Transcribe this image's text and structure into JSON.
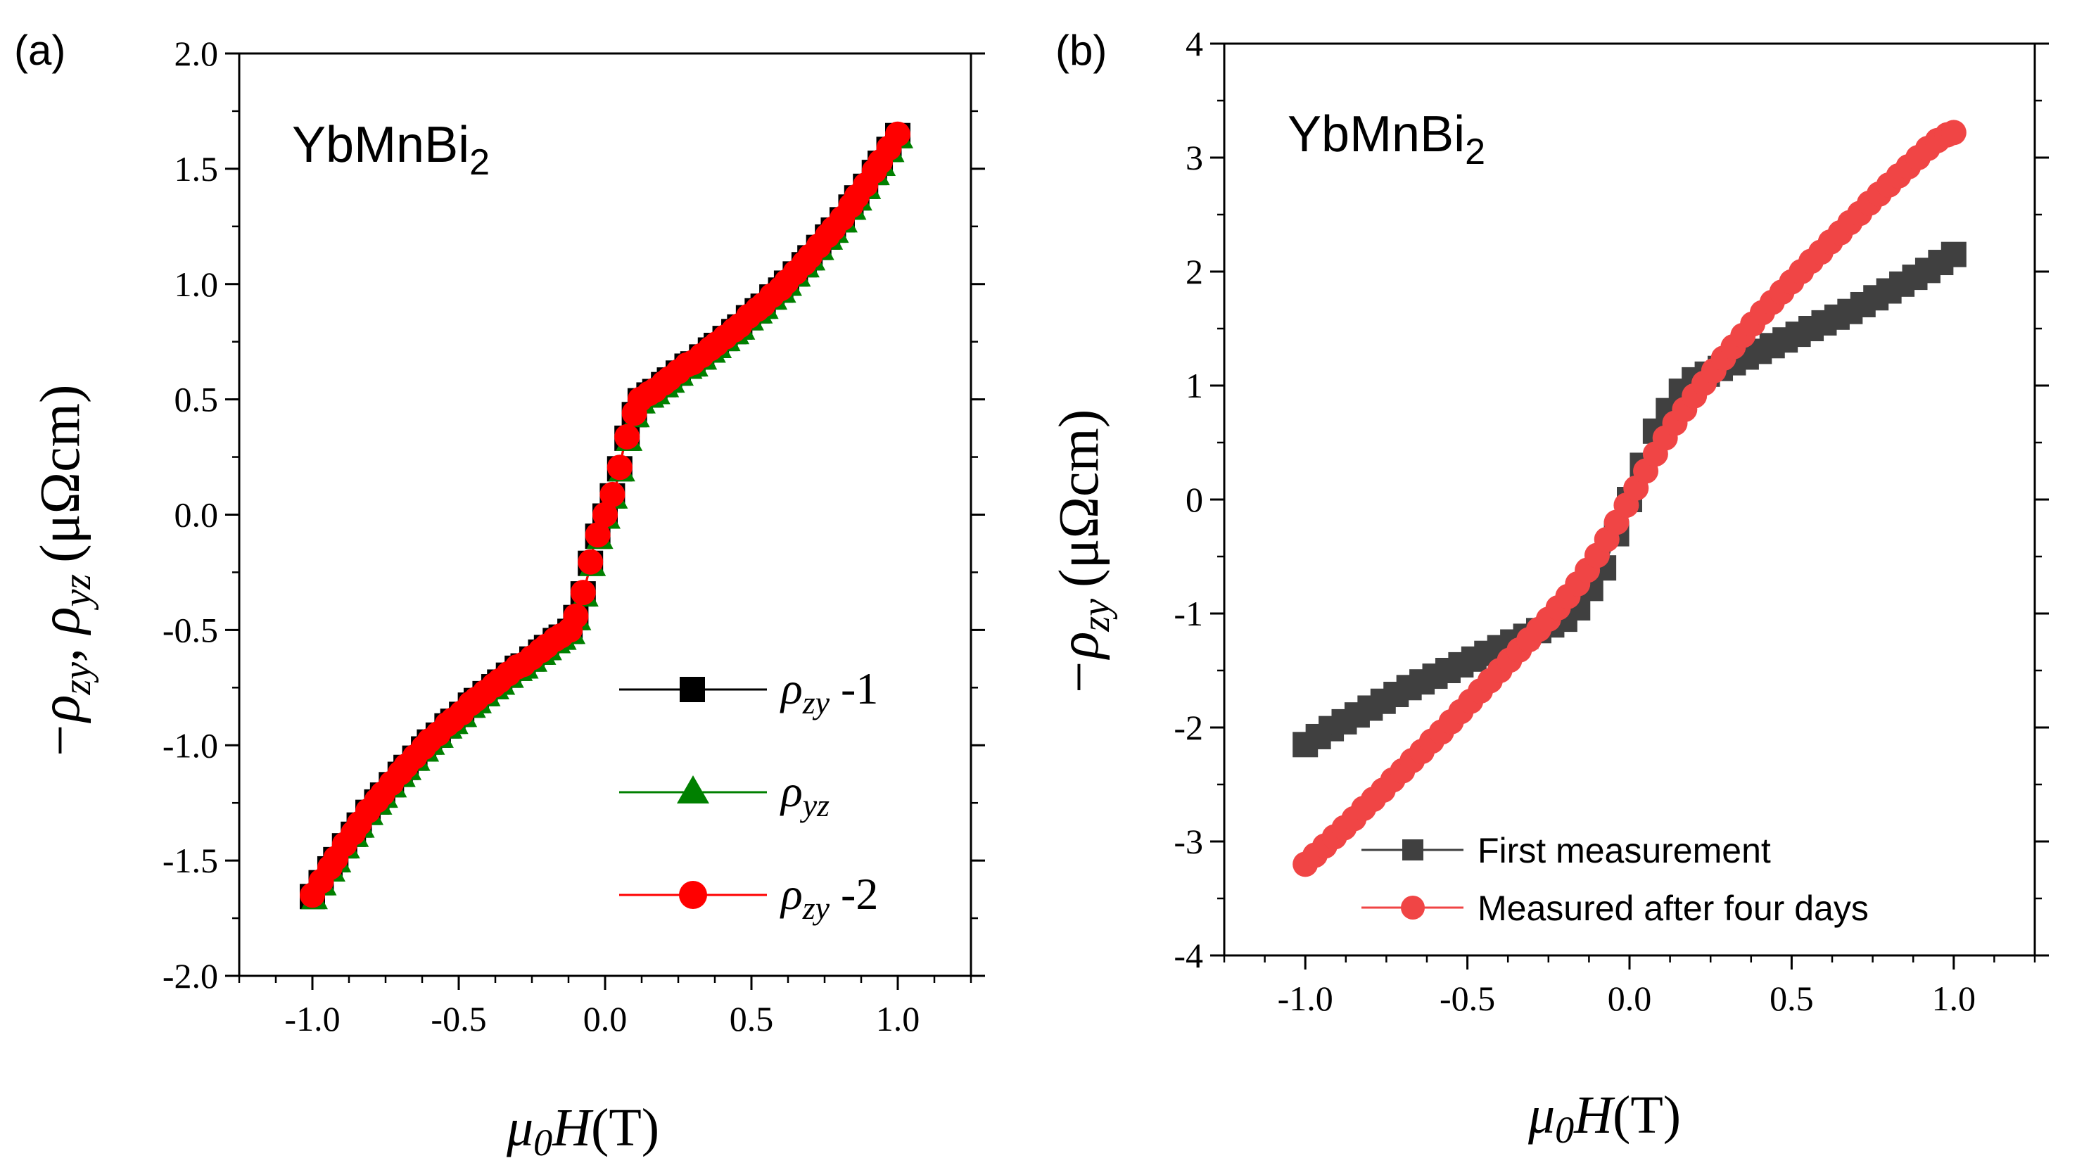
{
  "chart_data": [
    {
      "type": "scatter",
      "panel_label": "(a)",
      "compound": {
        "base": "YbMnBi",
        "subscript": "2"
      },
      "xlabel": {
        "prefix": "μ",
        "sub": "0",
        "var": "H",
        "unit": "(T)"
      },
      "ylabel": {
        "prefix": "−ρ",
        "sub1": "zy",
        "sep": ",  ρ",
        "sub2": "yz",
        "unit": "(μΩcm)"
      },
      "xlim": [
        -1.25,
        1.25
      ],
      "ylim": [
        -2.0,
        2.0
      ],
      "xticks": [
        -1.0,
        -0.5,
        0.0,
        0.5,
        1.0
      ],
      "xtick_labels": [
        "-1.0",
        "-0.5",
        "0.0",
        "0.5",
        "1.0"
      ],
      "yticks": [
        -2.0,
        -1.5,
        -1.0,
        -0.5,
        0.0,
        0.5,
        1.0,
        1.5,
        2.0
      ],
      "ytick_labels": [
        "-2.0",
        "-1.5",
        "-1.0",
        "-0.5",
        "0.0",
        "0.5",
        "1.0",
        "1.5",
        "2.0"
      ],
      "series": [
        {
          "name": "ρzy -1",
          "legend": {
            "sym": "ρ",
            "sub": "zy",
            "suffix": " -1"
          },
          "marker": "square",
          "color": "#000000"
        },
        {
          "name": "ρyz",
          "legend": {
            "sym": "ρ",
            "sub": "yz",
            "suffix": ""
          },
          "marker": "triangle",
          "color": "#008000"
        },
        {
          "name": "ρzy -2",
          "legend": {
            "sym": "ρ",
            "sub": "zy",
            "suffix": " -2"
          },
          "marker": "circle",
          "color": "#ff0000"
        }
      ],
      "x": [
        -1.0,
        -0.98,
        -0.96,
        -0.94,
        -0.92,
        -0.9,
        -0.88,
        -0.86,
        -0.84,
        -0.82,
        -0.8,
        -0.78,
        -0.76,
        -0.74,
        -0.72,
        -0.7,
        -0.68,
        -0.66,
        -0.64,
        -0.62,
        -0.6,
        -0.58,
        -0.56,
        -0.54,
        -0.52,
        -0.5,
        -0.48,
        -0.46,
        -0.44,
        -0.42,
        -0.4,
        -0.38,
        -0.36,
        -0.34,
        -0.32,
        -0.3,
        -0.28,
        -0.26,
        -0.24,
        -0.22,
        -0.2,
        -0.18,
        -0.16,
        -0.14,
        -0.12,
        -0.1,
        -0.08,
        -0.06,
        -0.04,
        -0.02,
        0.0,
        0.02,
        0.04,
        0.06,
        0.08,
        0.1,
        0.12,
        0.14,
        0.16,
        0.18,
        0.2,
        0.22,
        0.24,
        0.26,
        0.28,
        0.3,
        0.32,
        0.34,
        0.36,
        0.38,
        0.4,
        0.42,
        0.44,
        0.46,
        0.48,
        0.5,
        0.52,
        0.54,
        0.56,
        0.58,
        0.6,
        0.62,
        0.64,
        0.66,
        0.68,
        0.7,
        0.72,
        0.74,
        0.76,
        0.78,
        0.8,
        0.82,
        0.84,
        0.86,
        0.88,
        0.9,
        0.92,
        0.94,
        0.96,
        0.98,
        1.0
      ],
      "y": [
        -1.65,
        -1.61,
        -1.57,
        -1.53,
        -1.49,
        -1.45,
        -1.41,
        -1.38,
        -1.34,
        -1.3,
        -1.27,
        -1.24,
        -1.21,
        -1.18,
        -1.15,
        -1.12,
        -1.09,
        -1.06,
        -1.04,
        -1.01,
        -0.98,
        -0.96,
        -0.94,
        -0.91,
        -0.89,
        -0.87,
        -0.85,
        -0.82,
        -0.8,
        -0.78,
        -0.76,
        -0.74,
        -0.72,
        -0.7,
        -0.68,
        -0.66,
        -0.65,
        -0.63,
        -0.61,
        -0.59,
        -0.57,
        -0.55,
        -0.53,
        -0.52,
        -0.5,
        -0.44,
        -0.36,
        -0.27,
        -0.14,
        -0.07,
        0.0,
        0.07,
        0.14,
        0.27,
        0.36,
        0.44,
        0.5,
        0.52,
        0.53,
        0.55,
        0.57,
        0.59,
        0.61,
        0.63,
        0.65,
        0.66,
        0.68,
        0.7,
        0.72,
        0.74,
        0.76,
        0.78,
        0.8,
        0.82,
        0.85,
        0.87,
        0.89,
        0.91,
        0.94,
        0.96,
        0.98,
        1.01,
        1.04,
        1.06,
        1.09,
        1.12,
        1.15,
        1.18,
        1.21,
        1.24,
        1.27,
        1.3,
        1.34,
        1.38,
        1.41,
        1.45,
        1.49,
        1.53,
        1.57,
        1.61,
        1.65
      ],
      "marker_x": [
        -1.0,
        -0.97,
        -0.94,
        -0.92,
        -0.89,
        -0.86,
        -0.84,
        -0.81,
        -0.78,
        -0.76,
        -0.73,
        -0.7,
        -0.68,
        -0.65,
        -0.62,
        -0.6,
        -0.57,
        -0.54,
        -0.52,
        -0.49,
        -0.46,
        -0.44,
        -0.41,
        -0.38,
        -0.36,
        -0.33,
        -0.3,
        -0.28,
        -0.25,
        -0.22,
        -0.2,
        -0.17,
        -0.15,
        -0.12,
        -0.1,
        -0.075,
        -0.05,
        -0.025,
        0.0,
        0.025,
        0.05,
        0.075,
        0.1,
        0.12,
        0.15,
        0.17,
        0.2,
        0.22,
        0.25,
        0.28,
        0.3,
        0.33,
        0.36,
        0.38,
        0.41,
        0.44,
        0.46,
        0.49,
        0.52,
        0.54,
        0.57,
        0.6,
        0.62,
        0.65,
        0.68,
        0.7,
        0.73,
        0.76,
        0.78,
        0.81,
        0.84,
        0.86,
        0.89,
        0.92,
        0.94,
        0.97,
        1.0
      ]
    },
    {
      "type": "scatter",
      "panel_label": "(b)",
      "compound": {
        "base": "YbMnBi",
        "subscript": "2"
      },
      "xlabel": {
        "prefix": "μ",
        "sub": "0",
        "var": "H",
        "unit": "(T)"
      },
      "ylabel": {
        "prefix": "−ρ",
        "sub1": "zy",
        "unit": "(μΩcm)"
      },
      "xlim": [
        -1.25,
        1.25
      ],
      "ylim": [
        -4,
        4
      ],
      "xticks": [
        -1.0,
        -0.5,
        0.0,
        0.5,
        1.0
      ],
      "xtick_labels": [
        "-1.0",
        "-0.5",
        "0.0",
        "0.5",
        "1.0"
      ],
      "yticks": [
        -4,
        -3,
        -2,
        -1,
        0,
        1,
        2,
        3,
        4
      ],
      "ytick_labels": [
        "-4",
        "-3",
        "-2",
        "-1",
        "0",
        "1",
        "2",
        "3",
        "4"
      ],
      "series": [
        {
          "name": "First measurement",
          "marker": "square",
          "color": "#404040",
          "x": [
            -1.0,
            -0.96,
            -0.92,
            -0.88,
            -0.84,
            -0.8,
            -0.76,
            -0.72,
            -0.68,
            -0.64,
            -0.6,
            -0.56,
            -0.52,
            -0.48,
            -0.44,
            -0.4,
            -0.36,
            -0.32,
            -0.28,
            -0.24,
            -0.2,
            -0.16,
            -0.12,
            -0.08,
            -0.04,
            0.0,
            0.04,
            0.08,
            0.12,
            0.16,
            0.2,
            0.24,
            0.28,
            0.32,
            0.36,
            0.4,
            0.44,
            0.48,
            0.52,
            0.56,
            0.6,
            0.64,
            0.68,
            0.72,
            0.76,
            0.8,
            0.84,
            0.88,
            0.92,
            0.96,
            1.0
          ],
          "y": [
            -2.15,
            -2.08,
            -2.01,
            -1.95,
            -1.89,
            -1.83,
            -1.77,
            -1.71,
            -1.65,
            -1.6,
            -1.55,
            -1.5,
            -1.45,
            -1.4,
            -1.35,
            -1.3,
            -1.25,
            -1.2,
            -1.15,
            -1.1,
            -1.05,
            -0.95,
            -0.78,
            -0.6,
            -0.3,
            0.0,
            0.3,
            0.6,
            0.78,
            0.95,
            1.05,
            1.1,
            1.15,
            1.2,
            1.25,
            1.3,
            1.35,
            1.4,
            1.45,
            1.5,
            1.55,
            1.6,
            1.65,
            1.71,
            1.77,
            1.83,
            1.89,
            1.95,
            2.01,
            2.08,
            2.15
          ]
        },
        {
          "name": "Measured after four days",
          "marker": "circle",
          "color": "#f04545",
          "x": [
            -1.0,
            -0.97,
            -0.94,
            -0.91,
            -0.88,
            -0.85,
            -0.82,
            -0.79,
            -0.76,
            -0.73,
            -0.7,
            -0.67,
            -0.64,
            -0.61,
            -0.58,
            -0.55,
            -0.52,
            -0.49,
            -0.46,
            -0.43,
            -0.4,
            -0.37,
            -0.34,
            -0.31,
            -0.28,
            -0.25,
            -0.22,
            -0.19,
            -0.16,
            -0.13,
            -0.1,
            -0.07,
            -0.04,
            -0.01,
            0.02,
            0.05,
            0.08,
            0.11,
            0.14,
            0.17,
            0.2,
            0.23,
            0.26,
            0.29,
            0.32,
            0.35,
            0.38,
            0.41,
            0.44,
            0.47,
            0.5,
            0.53,
            0.56,
            0.59,
            0.62,
            0.65,
            0.68,
            0.71,
            0.74,
            0.77,
            0.8,
            0.83,
            0.86,
            0.89,
            0.92,
            0.95,
            0.98,
            1.0
          ],
          "y": [
            -3.2,
            -3.12,
            -3.04,
            -2.96,
            -2.88,
            -2.8,
            -2.71,
            -2.63,
            -2.55,
            -2.46,
            -2.38,
            -2.29,
            -2.21,
            -2.12,
            -2.04,
            -1.95,
            -1.86,
            -1.77,
            -1.68,
            -1.59,
            -1.5,
            -1.41,
            -1.32,
            -1.23,
            -1.14,
            -1.05,
            -0.95,
            -0.85,
            -0.74,
            -0.62,
            -0.49,
            -0.35,
            -0.2,
            -0.05,
            0.1,
            0.25,
            0.4,
            0.54,
            0.67,
            0.79,
            0.91,
            1.02,
            1.13,
            1.24,
            1.34,
            1.44,
            1.54,
            1.64,
            1.73,
            1.82,
            1.91,
            2.0,
            2.09,
            2.17,
            2.26,
            2.34,
            2.43,
            2.51,
            2.6,
            2.68,
            2.76,
            2.84,
            2.92,
            3.0,
            3.08,
            3.15,
            3.2,
            3.22
          ]
        }
      ]
    }
  ]
}
